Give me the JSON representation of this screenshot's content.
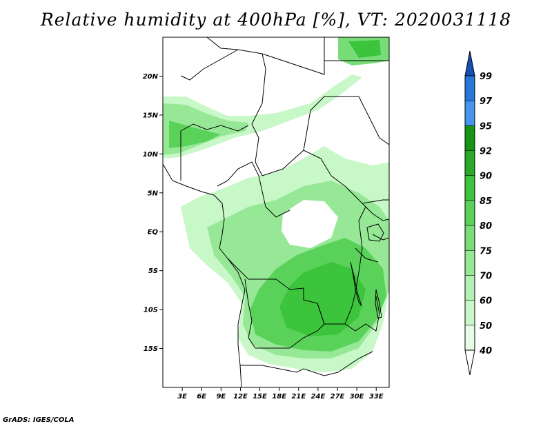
{
  "title": "Relative humidity at 400hPa [%], VT: 2020031118",
  "credit": "GrADS: IGES/COLA",
  "map": {
    "lon_range": [
      0,
      35
    ],
    "lat_range": [
      -20,
      25
    ],
    "lat_ticks": [
      {
        "value": 20,
        "label": "20N"
      },
      {
        "value": 15,
        "label": "15N"
      },
      {
        "value": 10,
        "label": "10N"
      },
      {
        "value": 5,
        "label": "5N"
      },
      {
        "value": 0,
        "label": "EQ"
      },
      {
        "value": -5,
        "label": "5S"
      },
      {
        "value": -10,
        "label": "10S"
      },
      {
        "value": -15,
        "label": "15S"
      }
    ],
    "lon_ticks": [
      {
        "value": 3,
        "label": "3E"
      },
      {
        "value": 6,
        "label": "6E"
      },
      {
        "value": 9,
        "label": "9E"
      },
      {
        "value": 12,
        "label": "12E"
      },
      {
        "value": 15,
        "label": "15E"
      },
      {
        "value": 18,
        "label": "18E"
      },
      {
        "value": 21,
        "label": "21E"
      },
      {
        "value": 24,
        "label": "24E"
      },
      {
        "value": 27,
        "label": "27E"
      },
      {
        "value": 30,
        "label": "30E"
      },
      {
        "value": 33,
        "label": "33E"
      }
    ]
  },
  "colorbar": {
    "levels": [
      {
        "label": "40",
        "color": "#e6fce6"
      },
      {
        "label": "50",
        "color": "#c8f8c8"
      },
      {
        "label": "60",
        "color": "#b4f0b4"
      },
      {
        "label": "70",
        "color": "#96e896"
      },
      {
        "label": "75",
        "color": "#78dc78"
      },
      {
        "label": "80",
        "color": "#5ad25a"
      },
      {
        "label": "85",
        "color": "#3cc43c"
      },
      {
        "label": "90",
        "color": "#28aa28"
      },
      {
        "label": "92",
        "color": "#149614"
      },
      {
        "label": "95",
        "color": "#4696ee"
      },
      {
        "label": "97",
        "color": "#2878dc"
      },
      {
        "label": "99",
        "color": "#1450b4"
      }
    ],
    "under_color": "#ffffff",
    "over_color": "#1450b4"
  },
  "colors": {
    "border": "#000000",
    "humid_light": "#c8f8c8",
    "humid_mid": "#78dc78",
    "humid_dark": "#3cc43c"
  }
}
